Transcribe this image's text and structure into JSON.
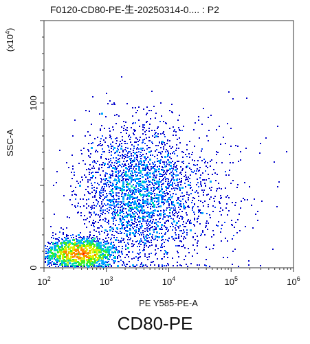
{
  "chart_data": {
    "type": "scatter",
    "title": "F0120-CD80-PE-生-20250314-0.... : P2",
    "xlabel": "PE Y585-PE-A",
    "ylabel": "SSC-A",
    "ylabel_multiplier": "(x10",
    "ylabel_multiplier_exp": "4",
    "ylabel_multiplier_close": ")",
    "x_scale": "log",
    "xlim": [
      100,
      1000000
    ],
    "ylim": [
      0,
      150
    ],
    "x_ticks": [
      {
        "value": 100,
        "base": "10",
        "exp": "2"
      },
      {
        "value": 1000,
        "base": "10",
        "exp": "3"
      },
      {
        "value": 10000,
        "base": "10",
        "exp": "4"
      },
      {
        "value": 100000,
        "base": "10",
        "exp": "5"
      },
      {
        "value": 1000000,
        "base": "10",
        "exp": "6"
      }
    ],
    "y_ticks": [
      {
        "value": 0,
        "label": "0"
      },
      {
        "value": 100,
        "label": "100"
      }
    ],
    "grid": false,
    "clusters": [
      {
        "log_x_center": 2.55,
        "log_x_sd": 0.25,
        "y_center": 9,
        "y_sd": 4,
        "count": 4200
      },
      {
        "log_x_center": 3.45,
        "log_x_sd": 0.42,
        "y_center": 45,
        "y_sd": 20,
        "count": 2800
      },
      {
        "log_x_center": 4.2,
        "log_x_sd": 0.55,
        "y_center": 45,
        "y_sd": 22,
        "count": 700
      }
    ],
    "density_colors": [
      "#0000cc",
      "#0044ff",
      "#00aaff",
      "#00ddaa",
      "#44ee22",
      "#ddee00",
      "#ff8800",
      "#ff2200"
    ]
  },
  "caption": "CD80-PE"
}
